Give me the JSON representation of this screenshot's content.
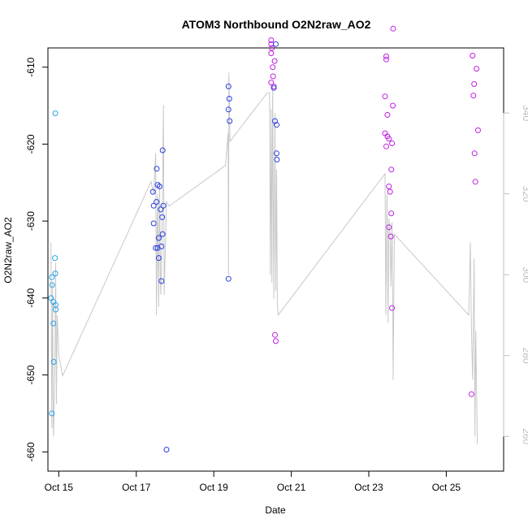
{
  "chart_data": {
    "type": "scatter",
    "title": "ATOM3 Northbound O2N2raw_AO2",
    "xlabel": "Date",
    "ylabel": "O2N2raw_AO2",
    "x_unit": "days since Oct 14 00:00",
    "xlim": [
      0.72,
      12.48
    ],
    "ylim": [
      -662.5,
      -607.5
    ],
    "y2lim": [
      251.4,
      356.1
    ],
    "x_ticks": [
      {
        "value": 1,
        "label": "Oct 15"
      },
      {
        "value": 3,
        "label": "Oct 17"
      },
      {
        "value": 5,
        "label": "Oct 19"
      },
      {
        "value": 7,
        "label": "Oct 21"
      },
      {
        "value": 9,
        "label": "Oct 23"
      },
      {
        "value": 11,
        "label": "Oct 25"
      }
    ],
    "y_ticks": [
      {
        "value": -610,
        "label": "-610"
      },
      {
        "value": -620,
        "label": "-620"
      },
      {
        "value": -630,
        "label": "-630"
      },
      {
        "value": -640,
        "label": "-640"
      },
      {
        "value": -650,
        "label": "-650"
      },
      {
        "value": -660,
        "label": "-660"
      }
    ],
    "y2_ticks": [
      {
        "value": 260,
        "label": "260"
      },
      {
        "value": 280,
        "label": "280"
      },
      {
        "value": 300,
        "label": "300"
      },
      {
        "value": 320,
        "label": "320"
      },
      {
        "value": 340,
        "label": "340"
      }
    ],
    "colors": {
      "line": "#c8c8c8",
      "right_axis": "#bebebe",
      "early": "#29a3e8",
      "mid": "#2b3fe0",
      "late": "#c020e0",
      "axis": "#000000"
    },
    "points": [
      {
        "x": 0.82,
        "y": -655.0,
        "c": "early"
      },
      {
        "x": 0.8,
        "y": -640.0,
        "c": "early"
      },
      {
        "x": 0.82,
        "y": -637.3,
        "c": "early"
      },
      {
        "x": 0.83,
        "y": -638.3,
        "c": "early"
      },
      {
        "x": 0.86,
        "y": -640.5,
        "c": "early"
      },
      {
        "x": 0.86,
        "y": -643.3,
        "c": "early"
      },
      {
        "x": 0.87,
        "y": -648.3,
        "c": "early"
      },
      {
        "x": 0.91,
        "y": -616.0,
        "c": "early"
      },
      {
        "x": 0.9,
        "y": -634.8,
        "c": "early"
      },
      {
        "x": 0.91,
        "y": -636.8,
        "c": "early"
      },
      {
        "x": 0.92,
        "y": -640.9,
        "c": "early"
      },
      {
        "x": 0.92,
        "y": -641.5,
        "c": "early"
      },
      {
        "x": 3.43,
        "y": -626.2,
        "c": "mid"
      },
      {
        "x": 3.45,
        "y": -628.0,
        "c": "mid"
      },
      {
        "x": 3.45,
        "y": -630.3,
        "c": "mid"
      },
      {
        "x": 3.5,
        "y": -633.5,
        "c": "mid"
      },
      {
        "x": 3.52,
        "y": -627.5,
        "c": "mid"
      },
      {
        "x": 3.53,
        "y": -623.2,
        "c": "mid"
      },
      {
        "x": 3.55,
        "y": -625.3,
        "c": "mid"
      },
      {
        "x": 3.55,
        "y": -633.5,
        "c": "mid"
      },
      {
        "x": 3.58,
        "y": -632.2,
        "c": "mid"
      },
      {
        "x": 3.58,
        "y": -634.8,
        "c": "mid"
      },
      {
        "x": 3.6,
        "y": -625.5,
        "c": "mid"
      },
      {
        "x": 3.63,
        "y": -628.5,
        "c": "mid"
      },
      {
        "x": 3.65,
        "y": -633.3,
        "c": "mid"
      },
      {
        "x": 3.65,
        "y": -637.8,
        "c": "mid"
      },
      {
        "x": 3.67,
        "y": -629.5,
        "c": "mid"
      },
      {
        "x": 3.68,
        "y": -631.7,
        "c": "mid"
      },
      {
        "x": 3.68,
        "y": -620.8,
        "c": "mid"
      },
      {
        "x": 3.7,
        "y": -628.0,
        "c": "mid"
      },
      {
        "x": 3.78,
        "y": -659.7,
        "c": "mid"
      },
      {
        "x": 5.38,
        "y": -612.5,
        "c": "mid"
      },
      {
        "x": 5.4,
        "y": -614.1,
        "c": "mid"
      },
      {
        "x": 5.38,
        "y": -615.5,
        "c": "mid"
      },
      {
        "x": 5.41,
        "y": -617.0,
        "c": "mid"
      },
      {
        "x": 5.38,
        "y": -637.5,
        "c": "mid"
      },
      {
        "x": 6.48,
        "y": -606.5,
        "c": "late"
      },
      {
        "x": 6.48,
        "y": -607.0,
        "c": "late"
      },
      {
        "x": 6.5,
        "y": -607.5,
        "c": "late"
      },
      {
        "x": 6.48,
        "y": -608.2,
        "c": "late"
      },
      {
        "x": 6.52,
        "y": -610.0,
        "c": "late"
      },
      {
        "x": 6.53,
        "y": -611.2,
        "c": "late"
      },
      {
        "x": 6.48,
        "y": -612.0,
        "c": "late"
      },
      {
        "x": 6.55,
        "y": -612.5,
        "c": "late"
      },
      {
        "x": 6.57,
        "y": -609.2,
        "c": "late"
      },
      {
        "x": 6.6,
        "y": -607.0,
        "c": "mid"
      },
      {
        "x": 6.55,
        "y": -612.7,
        "c": "mid"
      },
      {
        "x": 6.58,
        "y": -617.0,
        "c": "mid"
      },
      {
        "x": 6.62,
        "y": -617.5,
        "c": "mid"
      },
      {
        "x": 6.62,
        "y": -621.2,
        "c": "mid"
      },
      {
        "x": 6.63,
        "y": -622.0,
        "c": "mid"
      },
      {
        "x": 6.58,
        "y": -644.8,
        "c": "late"
      },
      {
        "x": 6.6,
        "y": -645.6,
        "c": "late"
      },
      {
        "x": 9.42,
        "y": -613.8,
        "c": "late"
      },
      {
        "x": 9.42,
        "y": -618.6,
        "c": "late"
      },
      {
        "x": 9.45,
        "y": -609.0,
        "c": "late"
      },
      {
        "x": 9.45,
        "y": -608.6,
        "c": "late"
      },
      {
        "x": 9.48,
        "y": -616.2,
        "c": "late"
      },
      {
        "x": 9.48,
        "y": -619.0,
        "c": "late"
      },
      {
        "x": 9.52,
        "y": -619.3,
        "c": "late"
      },
      {
        "x": 9.45,
        "y": -620.3,
        "c": "late"
      },
      {
        "x": 9.6,
        "y": -619.9,
        "c": "late"
      },
      {
        "x": 9.58,
        "y": -623.3,
        "c": "late"
      },
      {
        "x": 9.52,
        "y": -625.5,
        "c": "late"
      },
      {
        "x": 9.55,
        "y": -626.2,
        "c": "late"
      },
      {
        "x": 9.58,
        "y": -629.0,
        "c": "late"
      },
      {
        "x": 9.52,
        "y": -630.8,
        "c": "late"
      },
      {
        "x": 9.57,
        "y": -632.0,
        "c": "late"
      },
      {
        "x": 9.6,
        "y": -641.3,
        "c": "late"
      },
      {
        "x": 9.62,
        "y": -615.0,
        "c": "late"
      },
      {
        "x": 9.63,
        "y": -605.0,
        "c": "late"
      },
      {
        "x": 11.65,
        "y": -652.5,
        "c": "late"
      },
      {
        "x": 11.68,
        "y": -608.5,
        "c": "late"
      },
      {
        "x": 11.7,
        "y": -613.7,
        "c": "late"
      },
      {
        "x": 11.72,
        "y": -612.2,
        "c": "late"
      },
      {
        "x": 11.73,
        "y": -621.2,
        "c": "late"
      },
      {
        "x": 11.75,
        "y": -624.9,
        "c": "late"
      },
      {
        "x": 11.78,
        "y": -610.2,
        "c": "late"
      },
      {
        "x": 11.82,
        "y": -618.2,
        "c": "late"
      }
    ],
    "line_series": [
      {
        "x": 0.8,
        "y2": 308
      },
      {
        "x": 0.82,
        "y2": 262
      },
      {
        "x": 0.84,
        "y2": 298
      },
      {
        "x": 0.86,
        "y2": 260
      },
      {
        "x": 0.88,
        "y2": 265
      },
      {
        "x": 0.9,
        "y2": 278
      },
      {
        "x": 0.92,
        "y2": 303
      },
      {
        "x": 0.94,
        "y2": 268
      },
      {
        "x": 0.96,
        "y2": 290
      },
      {
        "x": 1.0,
        "y2": 280
      },
      {
        "x": 1.1,
        "y2": 275
      },
      {
        "x": 3.38,
        "y2": 323
      },
      {
        "x": 3.45,
        "y2": 320
      },
      {
        "x": 3.5,
        "y2": 330
      },
      {
        "x": 3.52,
        "y2": 290
      },
      {
        "x": 3.55,
        "y2": 320
      },
      {
        "x": 3.58,
        "y2": 292
      },
      {
        "x": 3.6,
        "y2": 323
      },
      {
        "x": 3.63,
        "y2": 295
      },
      {
        "x": 3.65,
        "y2": 300
      },
      {
        "x": 3.68,
        "y2": 322
      },
      {
        "x": 3.7,
        "y2": 342
      },
      {
        "x": 3.72,
        "y2": 295
      },
      {
        "x": 3.78,
        "y2": 318
      },
      {
        "x": 3.85,
        "y2": 317
      },
      {
        "x": 5.3,
        "y2": 327
      },
      {
        "x": 5.37,
        "y2": 335
      },
      {
        "x": 5.38,
        "y2": 300
      },
      {
        "x": 5.39,
        "y2": 350
      },
      {
        "x": 5.42,
        "y2": 333
      },
      {
        "x": 6.38,
        "y2": 345
      },
      {
        "x": 6.44,
        "y2": 345
      },
      {
        "x": 6.46,
        "y2": 300
      },
      {
        "x": 6.48,
        "y2": 341
      },
      {
        "x": 6.5,
        "y2": 298
      },
      {
        "x": 6.52,
        "y2": 347
      },
      {
        "x": 6.55,
        "y2": 294
      },
      {
        "x": 6.58,
        "y2": 340
      },
      {
        "x": 6.6,
        "y2": 296
      },
      {
        "x": 6.62,
        "y2": 326
      },
      {
        "x": 6.64,
        "y2": 293
      },
      {
        "x": 6.66,
        "y2": 290
      },
      {
        "x": 9.42,
        "y2": 325
      },
      {
        "x": 9.44,
        "y2": 290
      },
      {
        "x": 9.47,
        "y2": 320
      },
      {
        "x": 9.5,
        "y2": 288
      },
      {
        "x": 9.52,
        "y2": 314
      },
      {
        "x": 9.55,
        "y2": 310
      },
      {
        "x": 9.57,
        "y2": 297
      },
      {
        "x": 9.6,
        "y2": 313
      },
      {
        "x": 9.62,
        "y2": 290
      },
      {
        "x": 9.63,
        "y2": 274
      },
      {
        "x": 9.66,
        "y2": 310
      },
      {
        "x": 11.58,
        "y2": 290
      },
      {
        "x": 11.62,
        "y2": 308
      },
      {
        "x": 11.65,
        "y2": 286
      },
      {
        "x": 11.68,
        "y2": 274
      },
      {
        "x": 11.72,
        "y2": 304
      },
      {
        "x": 11.74,
        "y2": 260
      },
      {
        "x": 11.76,
        "y2": 286
      },
      {
        "x": 11.8,
        "y2": 258
      }
    ]
  }
}
